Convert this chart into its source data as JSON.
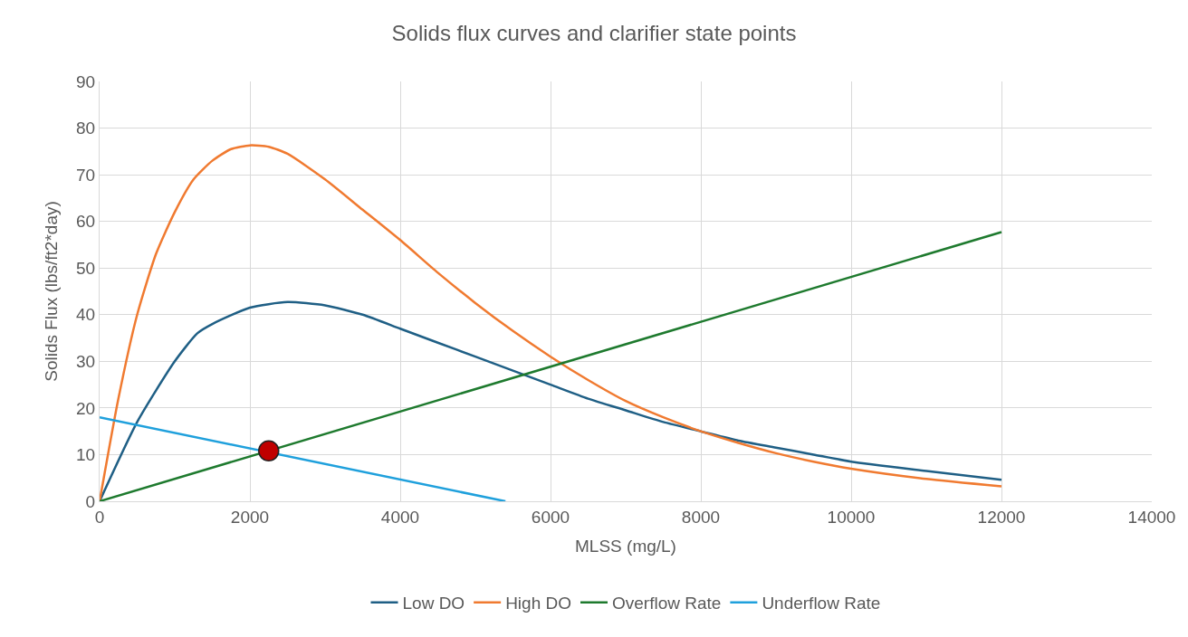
{
  "chart_data": {
    "type": "line",
    "title": "Solids flux curves and clarifier state points",
    "xlabel": "MLSS (mg/L)",
    "ylabel": "Solids Flux (lbs/ft2*day)",
    "xlim": [
      0,
      14000
    ],
    "xticks": [
      0,
      2000,
      4000,
      6000,
      8000,
      10000,
      12000,
      14000
    ],
    "ylim": [
      0,
      90
    ],
    "yticks": [
      0,
      10,
      20,
      30,
      40,
      50,
      60,
      70,
      80,
      90
    ],
    "grid": true,
    "legend": "bottom",
    "marker": "none",
    "series": [
      {
        "name": "Low DO",
        "color": "#1f5f85",
        "x": [
          0,
          500,
          1000,
          1300,
          1500,
          2000,
          2500,
          3000,
          3500,
          4000,
          4500,
          5000,
          5500,
          6000,
          6500,
          7000,
          7500,
          8000,
          8500,
          9000,
          9500,
          10000,
          11000,
          12000
        ],
        "values": [
          0,
          17,
          30,
          36,
          38,
          41.5,
          42.7,
          42,
          40,
          37,
          34,
          31,
          28,
          25,
          22,
          19.5,
          17,
          15,
          13,
          11.5,
          10,
          8.5,
          6.5,
          4.6
        ]
      },
      {
        "name": "High DO",
        "color": "#f07a30",
        "x": [
          0,
          250,
          500,
          750,
          1000,
          1250,
          1500,
          1750,
          2000,
          2250,
          2500,
          3000,
          3500,
          4000,
          4500,
          5000,
          5500,
          6000,
          6500,
          7000,
          7500,
          8000,
          8500,
          9000,
          9500,
          10000,
          11000,
          12000
        ],
        "values": [
          0,
          22,
          40,
          53,
          62,
          69,
          73,
          75.5,
          76.3,
          76,
          74.5,
          69,
          62.5,
          56,
          49,
          42.5,
          36.5,
          31,
          26,
          21.5,
          18,
          15,
          12.5,
          10.3,
          8.5,
          7,
          4.8,
          3.2
        ]
      },
      {
        "name": "Overflow Rate",
        "color": "#1e7a2e",
        "x": [
          0,
          12000
        ],
        "values": [
          0,
          57.7
        ]
      },
      {
        "name": "Underflow Rate",
        "color": "#1fa0dc",
        "x": [
          0,
          5400
        ],
        "values": [
          18,
          0
        ]
      },
      {
        "type": "scatter",
        "marker": "circle",
        "color": "#c00000",
        "x": [
          2250
        ],
        "values": [
          10.8
        ]
      }
    ]
  }
}
